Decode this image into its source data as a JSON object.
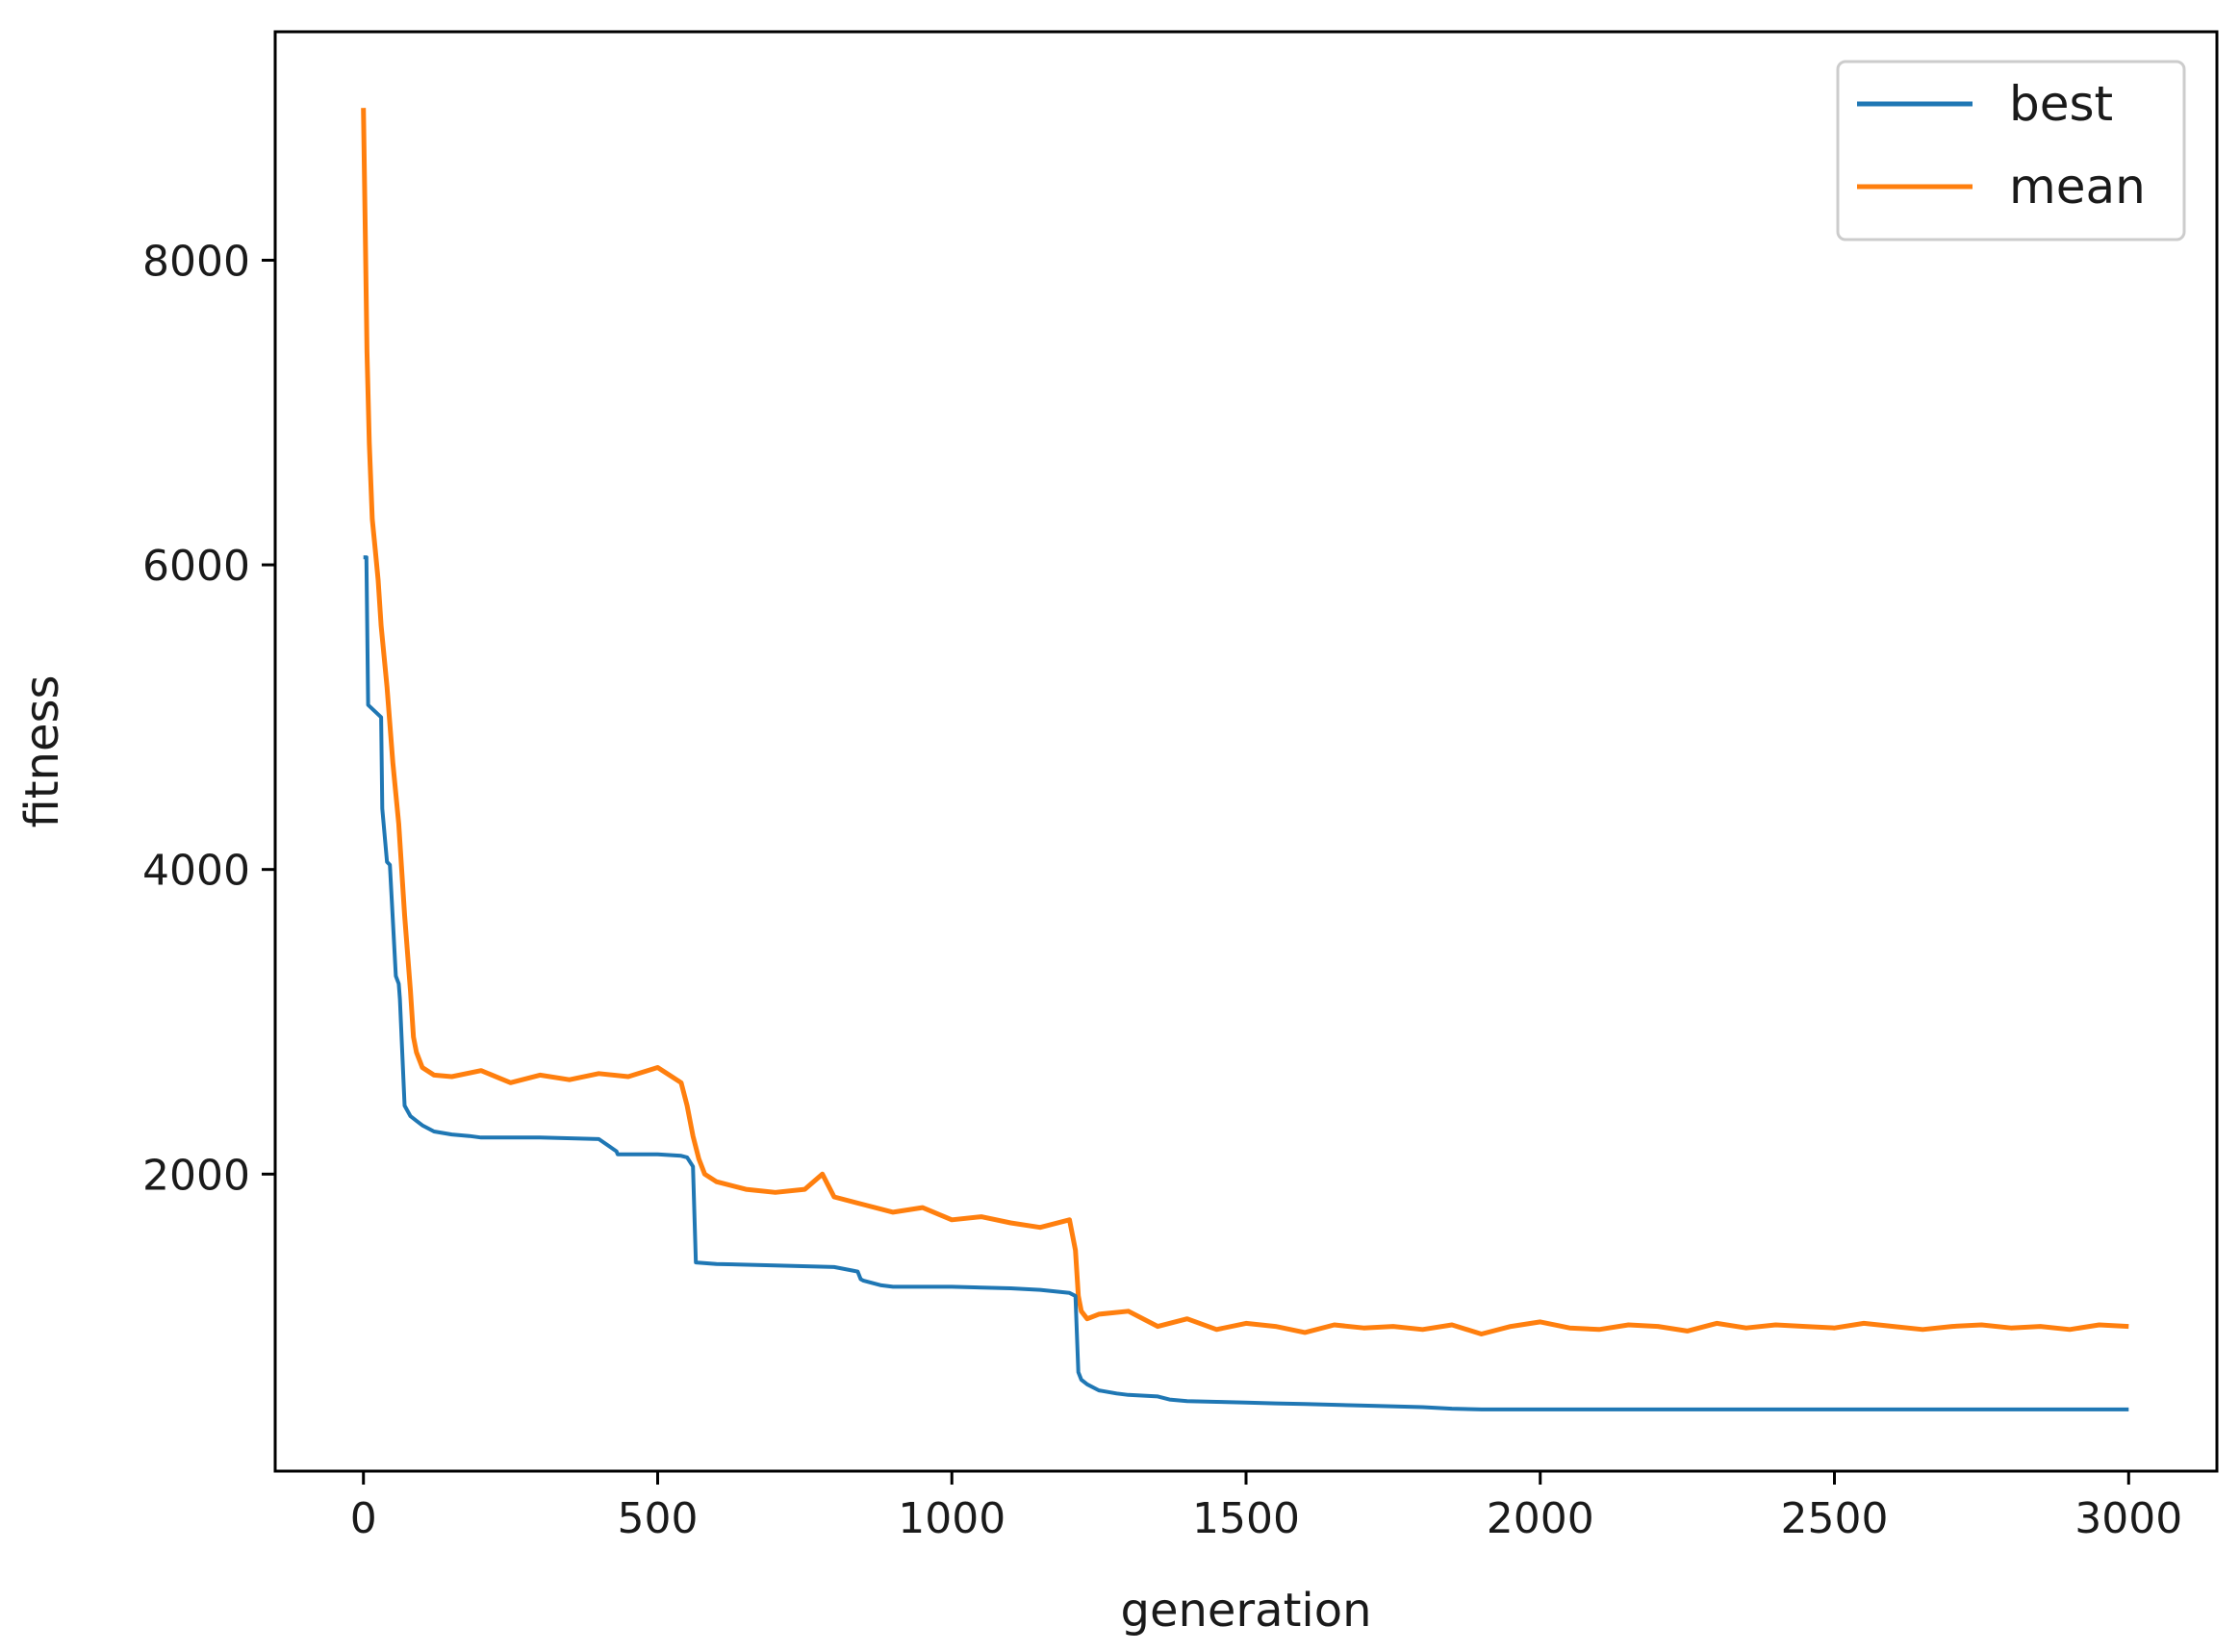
{
  "chart_data": {
    "type": "line",
    "title": "",
    "xlabel": "generation",
    "ylabel": "fitness",
    "xlim": [
      -150,
      3150
    ],
    "ylim": [
      50,
      9500
    ],
    "xticks": [
      0,
      500,
      1000,
      1500,
      2000,
      2500,
      3000
    ],
    "yticks": [
      2000,
      4000,
      6000,
      8000
    ],
    "grid": false,
    "legend_position": "top-right",
    "colors": {
      "best": "#1f77b4",
      "mean": "#ff7f0e"
    },
    "series": [
      {
        "name": "best",
        "x": [
          0,
          5,
          8,
          30,
          32,
          40,
          45,
          55,
          60,
          62,
          70,
          80,
          90,
          100,
          120,
          150,
          180,
          200,
          300,
          400,
          430,
          432,
          500,
          540,
          550,
          560,
          565,
          600,
          700,
          800,
          840,
          845,
          850,
          880,
          900,
          1000,
          1100,
          1150,
          1200,
          1210,
          1215,
          1220,
          1230,
          1250,
          1280,
          1300,
          1350,
          1370,
          1400,
          1450,
          1500,
          1550,
          1600,
          1700,
          1800,
          1850,
          1900,
          2000,
          2500,
          3000
        ],
        "y": [
          6050,
          6050,
          5080,
          5000,
          4400,
          4050,
          4030,
          3300,
          3250,
          3150,
          2450,
          2380,
          2350,
          2320,
          2280,
          2260,
          2250,
          2240,
          2240,
          2230,
          2150,
          2130,
          2130,
          2120,
          2110,
          2050,
          1420,
          1410,
          1400,
          1390,
          1360,
          1310,
          1300,
          1270,
          1260,
          1260,
          1250,
          1240,
          1220,
          1200,
          700,
          650,
          620,
          580,
          560,
          550,
          540,
          520,
          510,
          505,
          500,
          495,
          490,
          480,
          470,
          460,
          455,
          455,
          455,
          455
        ]
      },
      {
        "name": "mean",
        "x": [
          0,
          3,
          6,
          10,
          15,
          20,
          25,
          30,
          40,
          50,
          60,
          70,
          80,
          85,
          90,
          100,
          120,
          150,
          200,
          250,
          300,
          350,
          400,
          450,
          500,
          520,
          540,
          550,
          560,
          570,
          580,
          600,
          650,
          700,
          750,
          780,
          800,
          850,
          900,
          950,
          1000,
          1050,
          1100,
          1150,
          1200,
          1210,
          1215,
          1220,
          1230,
          1250,
          1300,
          1350,
          1400,
          1450,
          1500,
          1550,
          1600,
          1650,
          1700,
          1750,
          1800,
          1850,
          1900,
          1950,
          2000,
          2050,
          2100,
          2150,
          2200,
          2250,
          2300,
          2350,
          2400,
          2450,
          2500,
          2550,
          2600,
          2650,
          2700,
          2750,
          2800,
          2850,
          2900,
          2950,
          3000
        ],
        "y": [
          9000,
          8200,
          7400,
          6800,
          6300,
          6100,
          5900,
          5600,
          5200,
          4700,
          4300,
          3700,
          3200,
          2900,
          2800,
          2700,
          2650,
          2640,
          2680,
          2600,
          2650,
          2620,
          2660,
          2640,
          2700,
          2650,
          2600,
          2450,
          2250,
          2100,
          2000,
          1950,
          1900,
          1880,
          1900,
          2000,
          1850,
          1800,
          1750,
          1780,
          1700,
          1720,
          1680,
          1650,
          1700,
          1500,
          1200,
          1100,
          1050,
          1080,
          1100,
          1000,
          1050,
          980,
          1020,
          1000,
          960,
          1010,
          990,
          1000,
          980,
          1010,
          950,
          1000,
          1030,
          990,
          980,
          1010,
          1000,
          970,
          1020,
          990,
          1010,
          1000,
          990,
          1020,
          1000,
          980,
          1000,
          1010,
          990,
          1000,
          980,
          1010,
          1000
        ]
      }
    ]
  }
}
